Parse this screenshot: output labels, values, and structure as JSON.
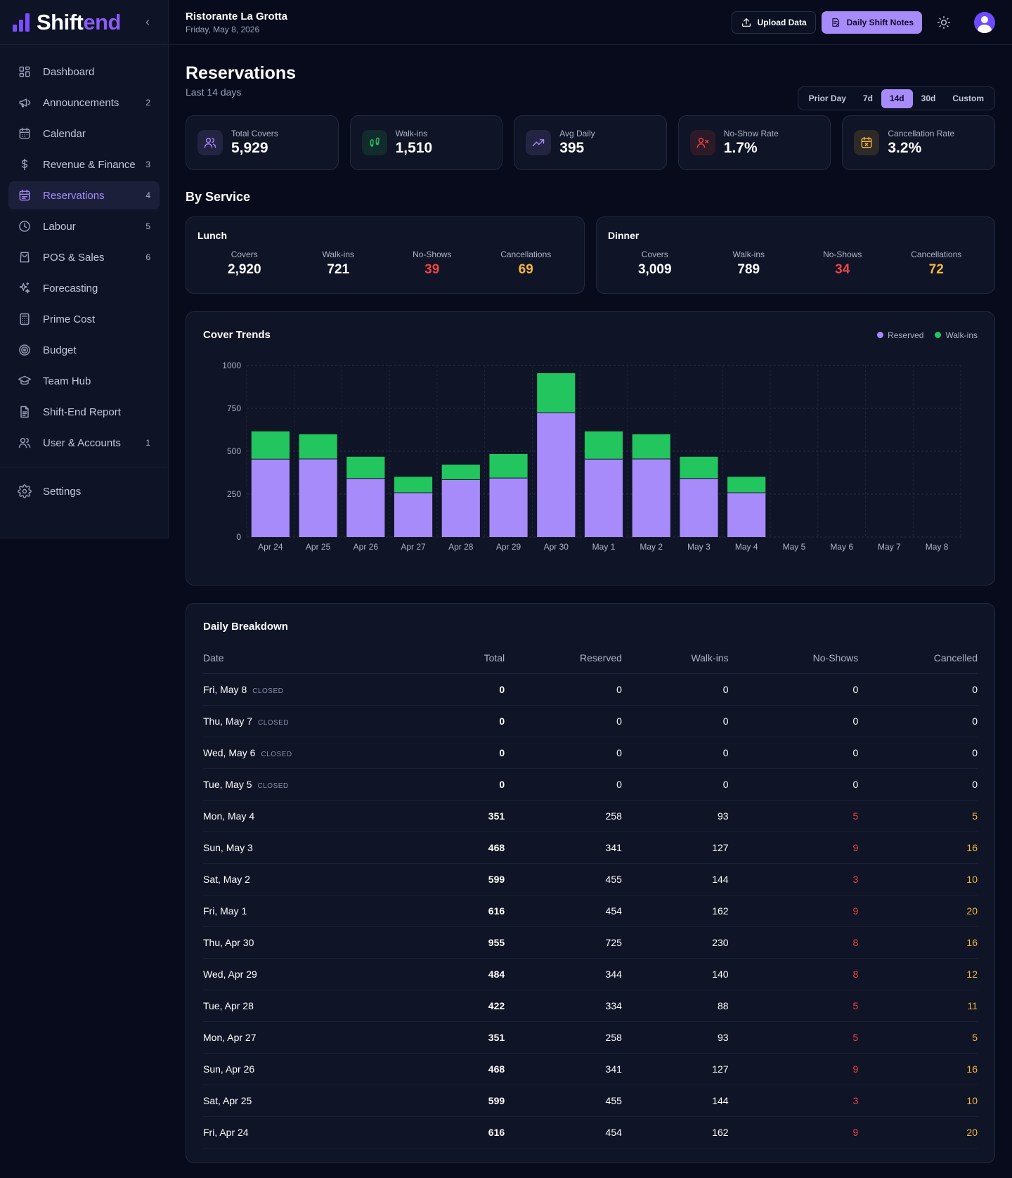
{
  "brand": {
    "name_main": "Shift",
    "name_accent": "end",
    "collapse_glyph": "‹"
  },
  "sidebar": {
    "items": [
      {
        "label": "Dashboard",
        "icon": "dashboard-icon",
        "badge": ""
      },
      {
        "label": "Announcements",
        "icon": "megaphone-icon",
        "badge": "2"
      },
      {
        "label": "Calendar",
        "icon": "calendar-icon",
        "badge": ""
      },
      {
        "label": "Revenue & Finance",
        "icon": "dollar-icon",
        "badge": "3"
      },
      {
        "label": "Reservations",
        "icon": "calendar-check-icon",
        "badge": "4",
        "active": true
      },
      {
        "label": "Labour",
        "icon": "clock-icon",
        "badge": "5"
      },
      {
        "label": "POS & Sales",
        "icon": "shopping-bag-icon",
        "badge": "6"
      },
      {
        "label": "Forecasting",
        "icon": "sparkles-icon",
        "badge": ""
      },
      {
        "label": "Prime Cost",
        "icon": "calculator-icon",
        "badge": ""
      },
      {
        "label": "Budget",
        "icon": "target-icon",
        "badge": ""
      },
      {
        "label": "Team Hub",
        "icon": "graduation-cap-icon",
        "badge": ""
      },
      {
        "label": "Shift-End Report",
        "icon": "file-text-icon",
        "badge": ""
      },
      {
        "label": "User & Accounts",
        "icon": "users-icon",
        "badge": "1"
      }
    ],
    "settings": {
      "label": "Settings",
      "icon": "gear-icon"
    }
  },
  "header": {
    "venue": "Ristorante La Grotta",
    "date": "Friday, May 8, 2026",
    "upload_label": "Upload Data",
    "notes_label": "Daily Shift Notes"
  },
  "page": {
    "title": "Reservations",
    "subtitle": "Last 14 days",
    "range_tabs": [
      "Prior Day",
      "7d",
      "14d",
      "30d",
      "Custom"
    ],
    "range_selected": "14d"
  },
  "kpis": [
    {
      "label": "Total Covers",
      "value": "5,929",
      "icon": "users-icon",
      "color": "#a78bfa"
    },
    {
      "label": "Walk-ins",
      "value": "1,510",
      "icon": "footprints-icon",
      "color": "#22c55e"
    },
    {
      "label": "Avg Daily",
      "value": "395",
      "icon": "trending-up-icon",
      "color": "#a78bfa"
    },
    {
      "label": "No-Show Rate",
      "value": "1.7%",
      "icon": "user-x-icon",
      "color": "#ef4444"
    },
    {
      "label": "Cancellation Rate",
      "value": "3.2%",
      "icon": "calendar-x-icon",
      "color": "#f5b83d"
    }
  ],
  "by_service": {
    "title": "By Service",
    "services": [
      {
        "name": "Lunch",
        "covers_label": "Covers",
        "covers": "2,920",
        "walkins_label": "Walk-ins",
        "walkins": "721",
        "noshows_label": "No-Shows",
        "noshows": "39",
        "cancellations_label": "Cancellations",
        "cancellations": "69"
      },
      {
        "name": "Dinner",
        "covers_label": "Covers",
        "covers": "3,009",
        "walkins_label": "Walk-ins",
        "walkins": "789",
        "noshows_label": "No-Shows",
        "noshows": "34",
        "cancellations_label": "Cancellations",
        "cancellations": "72"
      }
    ]
  },
  "colors": {
    "reserved": "#a78bfa",
    "walkins": "#22c55e",
    "noshow": "#ef4444",
    "cancel": "#f5b83d"
  },
  "chart_data": {
    "type": "bar",
    "stacked": true,
    "title": "Cover Trends",
    "categories": [
      "Apr 24",
      "Apr 25",
      "Apr 26",
      "Apr 27",
      "Apr 28",
      "Apr 29",
      "Apr 30",
      "May 1",
      "May 2",
      "May 3",
      "May 4",
      "May 5",
      "May 6",
      "May 7",
      "May 8"
    ],
    "series": [
      {
        "name": "Reserved",
        "color": "#a78bfa",
        "values": [
          454,
          455,
          341,
          258,
          334,
          344,
          725,
          454,
          455,
          341,
          258,
          0,
          0,
          0,
          0
        ]
      },
      {
        "name": "Walk-ins",
        "color": "#22c55e",
        "values": [
          162,
          144,
          127,
          93,
          88,
          140,
          230,
          162,
          144,
          127,
          93,
          0,
          0,
          0,
          0
        ]
      }
    ],
    "ylim": [
      0,
      1000
    ],
    "yticks": [
      0,
      250,
      500,
      750,
      1000
    ],
    "grid": true,
    "legend": "top-right"
  },
  "breakdown": {
    "title": "Daily Breakdown",
    "columns": [
      "Date",
      "Total",
      "Reserved",
      "Walk-ins",
      "No-Shows",
      "Cancelled"
    ],
    "closed_label": "CLOSED",
    "rows": [
      {
        "date": "Fri, May 8",
        "closed": true,
        "total": "0",
        "reserved": "0",
        "walkins": "0",
        "noshows": "0",
        "cancelled": "0"
      },
      {
        "date": "Thu, May 7",
        "closed": true,
        "total": "0",
        "reserved": "0",
        "walkins": "0",
        "noshows": "0",
        "cancelled": "0"
      },
      {
        "date": "Wed, May 6",
        "closed": true,
        "total": "0",
        "reserved": "0",
        "walkins": "0",
        "noshows": "0",
        "cancelled": "0"
      },
      {
        "date": "Tue, May 5",
        "closed": true,
        "total": "0",
        "reserved": "0",
        "walkins": "0",
        "noshows": "0",
        "cancelled": "0"
      },
      {
        "date": "Mon, May 4",
        "closed": false,
        "total": "351",
        "reserved": "258",
        "walkins": "93",
        "noshows": "5",
        "cancelled": "5"
      },
      {
        "date": "Sun, May 3",
        "closed": false,
        "total": "468",
        "reserved": "341",
        "walkins": "127",
        "noshows": "9",
        "cancelled": "16"
      },
      {
        "date": "Sat, May 2",
        "closed": false,
        "total": "599",
        "reserved": "455",
        "walkins": "144",
        "noshows": "3",
        "cancelled": "10"
      },
      {
        "date": "Fri, May 1",
        "closed": false,
        "total": "616",
        "reserved": "454",
        "walkins": "162",
        "noshows": "9",
        "cancelled": "20"
      },
      {
        "date": "Thu, Apr 30",
        "closed": false,
        "total": "955",
        "reserved": "725",
        "walkins": "230",
        "noshows": "8",
        "cancelled": "16"
      },
      {
        "date": "Wed, Apr 29",
        "closed": false,
        "total": "484",
        "reserved": "344",
        "walkins": "140",
        "noshows": "8",
        "cancelled": "12"
      },
      {
        "date": "Tue, Apr 28",
        "closed": false,
        "total": "422",
        "reserved": "334",
        "walkins": "88",
        "noshows": "5",
        "cancelled": "11"
      },
      {
        "date": "Mon, Apr 27",
        "closed": false,
        "total": "351",
        "reserved": "258",
        "walkins": "93",
        "noshows": "5",
        "cancelled": "5"
      },
      {
        "date": "Sun, Apr 26",
        "closed": false,
        "total": "468",
        "reserved": "341",
        "walkins": "127",
        "noshows": "9",
        "cancelled": "16"
      },
      {
        "date": "Sat, Apr 25",
        "closed": false,
        "total": "599",
        "reserved": "455",
        "walkins": "144",
        "noshows": "3",
        "cancelled": "10"
      },
      {
        "date": "Fri, Apr 24",
        "closed": false,
        "total": "616",
        "reserved": "454",
        "walkins": "162",
        "noshows": "9",
        "cancelled": "20"
      }
    ]
  }
}
